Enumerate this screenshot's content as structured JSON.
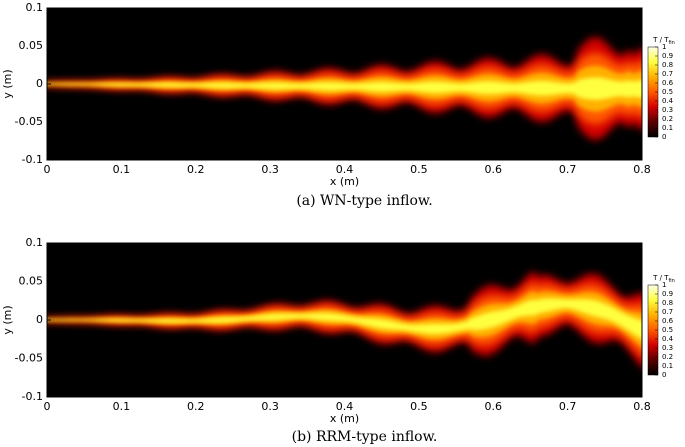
{
  "chart_data": [
    {
      "type": "contour",
      "caption": "(a)  WN-type inflow.",
      "xlabel": "x (m)",
      "ylabel": "y (m)",
      "xlim": [
        0,
        0.8
      ],
      "xticks": [
        0,
        0.1,
        0.2,
        0.3,
        0.4,
        0.5,
        0.6,
        0.7,
        0.8
      ],
      "ylim": [
        -0.1,
        0.1
      ],
      "yticks": [
        -0.1,
        -0.05,
        0,
        0.05,
        0.1
      ],
      "colorbar": {
        "label": "T / T",
        "label_sub": "fin",
        "clim": [
          0,
          1
        ],
        "ticks": [
          0,
          0.1,
          0.2,
          0.3,
          0.4,
          0.5,
          0.6,
          0.7,
          0.8,
          0.9,
          1
        ],
        "colormap": [
          "#000000",
          "#5a0000",
          "#d40000",
          "#ff5a00",
          "#ffb000",
          "#ffff40",
          "#ffffe8"
        ]
      }
    },
    {
      "type": "contour",
      "caption": "(b)  RRM-type inflow.",
      "xlabel": "x (m)",
      "ylabel": "y (m)",
      "xlim": [
        0,
        0.8
      ],
      "xticks": [
        0,
        0.1,
        0.2,
        0.3,
        0.4,
        0.5,
        0.6,
        0.7,
        0.8
      ],
      "ylim": [
        -0.1,
        0.1
      ],
      "yticks": [
        -0.1,
        -0.05,
        0,
        0.05,
        0.1
      ],
      "colorbar": {
        "label": "T / T",
        "label_sub": "fin",
        "clim": [
          0,
          1
        ],
        "ticks": [
          0,
          0.1,
          0.2,
          0.3,
          0.4,
          0.5,
          0.6,
          0.7,
          0.8,
          0.9,
          1
        ],
        "colormap": [
          "#000000",
          "#5a0000",
          "#d40000",
          "#ff5a00",
          "#ffb000",
          "#ffff40",
          "#ffffe8"
        ]
      }
    }
  ]
}
